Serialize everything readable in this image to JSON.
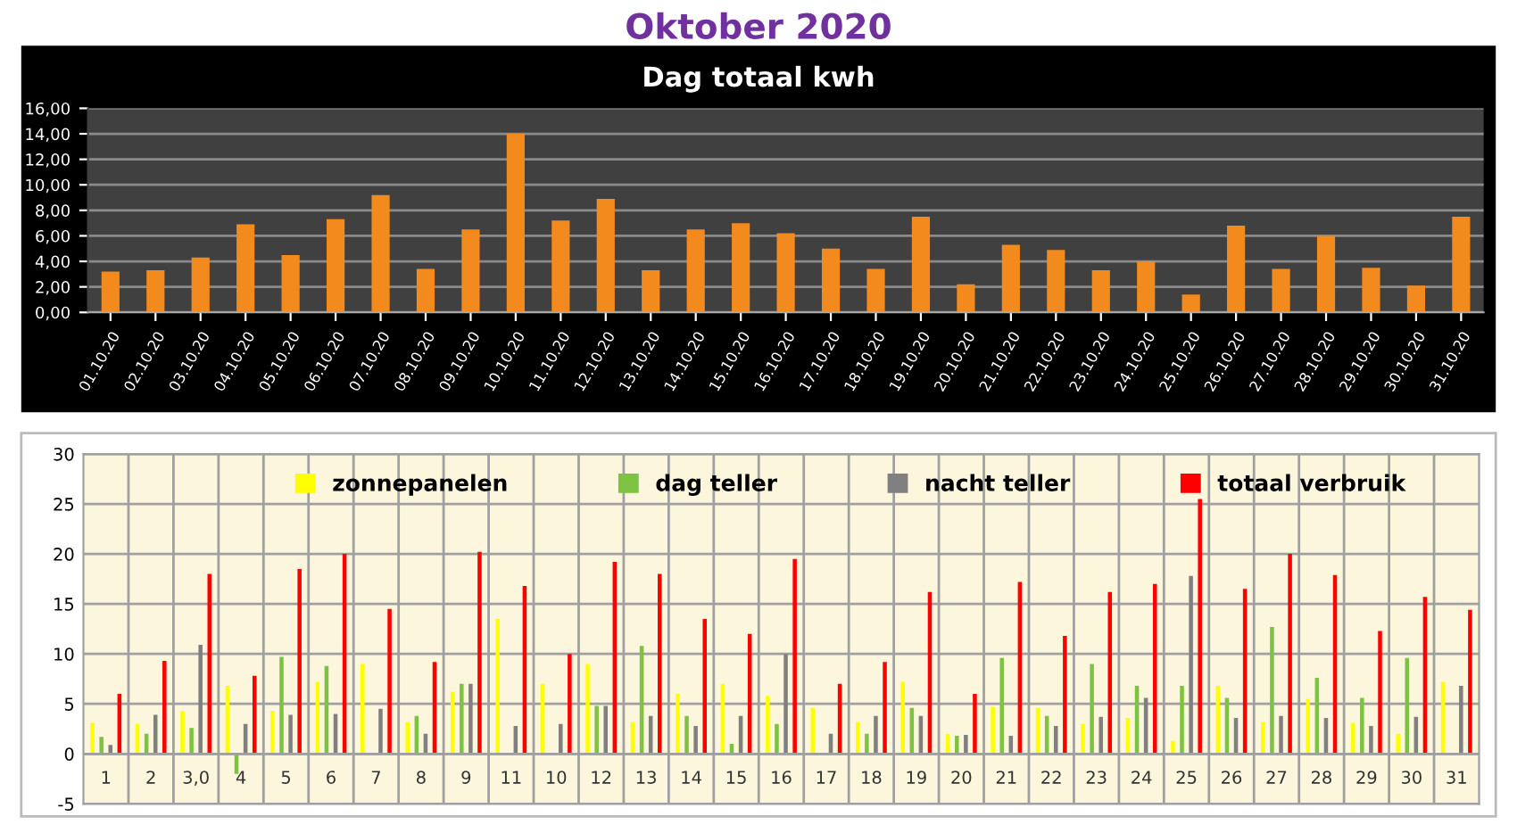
{
  "chart_data": [
    {
      "type": "bar",
      "title": "Oktober 2020",
      "subtitle": "Dag totaal kwh",
      "categories": [
        "01.10.20",
        "02.10.20",
        "03.10.20",
        "04.10.20",
        "05.10.20",
        "06.10.20",
        "07.10.20",
        "08.10.20",
        "09.10.20",
        "10.10.20",
        "11.10.20",
        "12.10.20",
        "13.10.20",
        "14.10.20",
        "15.10.20",
        "16.10.20",
        "17.10.20",
        "18.10.20",
        "19.10.20",
        "20.10.20",
        "21.10.20",
        "22.10.20",
        "23.10.20",
        "24.10.20",
        "25.10.20",
        "26.10.20",
        "27.10.20",
        "28.10.20",
        "29.10.20",
        "30.10.20",
        "31.10.20"
      ],
      "values": [
        3.2,
        3.3,
        4.3,
        6.9,
        4.5,
        7.3,
        9.2,
        3.4,
        6.5,
        14.0,
        7.2,
        8.9,
        3.3,
        6.5,
        7.0,
        6.2,
        5.0,
        3.4,
        7.5,
        2.2,
        5.3,
        4.9,
        3.3,
        4.0,
        1.4,
        6.8,
        3.4,
        6.0,
        3.5,
        2.1,
        7.5
      ],
      "color": "#f28a1e",
      "ylim": [
        0,
        16
      ],
      "yticks": [
        {
          "value": 0,
          "label": "0,00"
        },
        {
          "value": 2,
          "label": "2,00"
        },
        {
          "value": 4,
          "label": "4,00"
        },
        {
          "value": 6,
          "label": "6,00"
        },
        {
          "value": 8,
          "label": "8,00"
        },
        {
          "value": 10,
          "label": "10,00"
        },
        {
          "value": 12,
          "label": "12,00"
        },
        {
          "value": 14,
          "label": "14,00"
        },
        {
          "value": 16,
          "label": "16,00"
        }
      ],
      "grid": "y"
    },
    {
      "type": "bar",
      "categories": [
        "1",
        "2",
        "3,0",
        "4",
        "5",
        "6",
        "7",
        "8",
        "9",
        "11",
        "10",
        "12",
        "13",
        "14",
        "15",
        "16",
        "17",
        "18",
        "19",
        "20",
        "21",
        "22",
        "23",
        "24",
        "25",
        "26",
        "27",
        "28",
        "29",
        "30",
        "31"
      ],
      "series": [
        {
          "name": "zonnepanelen",
          "color": "#ffff00",
          "values": [
            3.1,
            3.0,
            4.3,
            6.8,
            4.3,
            7.2,
            9.0,
            3.2,
            6.2,
            13.5,
            7.0,
            9.0,
            3.2,
            6.0,
            7.0,
            5.8,
            4.6,
            3.2,
            7.2,
            2.0,
            4.7,
            4.6,
            3.0,
            3.6,
            1.3,
            6.8,
            3.2,
            5.5,
            3.1,
            2.0,
            7.2
          ]
        },
        {
          "name": "dag teller",
          "color": "#7dc242",
          "values": [
            1.7,
            2.0,
            2.6,
            -2.0,
            9.7,
            8.8,
            0,
            3.8,
            7.0,
            0,
            0,
            4.8,
            10.8,
            3.8,
            1.0,
            3.0,
            0,
            2.0,
            4.6,
            1.8,
            9.6,
            3.8,
            9.0,
            6.8,
            6.8,
            5.6,
            12.7,
            7.6,
            5.6,
            9.6,
            0
          ]
        },
        {
          "name": "nacht teller",
          "color": "#808080",
          "values": [
            0.9,
            3.9,
            10.9,
            3.0,
            3.9,
            4.0,
            4.5,
            2.0,
            7.0,
            2.8,
            3.0,
            4.8,
            3.8,
            2.8,
            3.8,
            10.0,
            2.0,
            3.8,
            3.8,
            1.9,
            1.8,
            2.8,
            3.7,
            5.6,
            17.8,
            3.6,
            3.8,
            3.6,
            2.8,
            3.7,
            6.8
          ]
        },
        {
          "name": "totaal verbruik",
          "color": "#ff0000",
          "values": [
            6.0,
            9.3,
            18.0,
            7.8,
            18.5,
            20.0,
            14.5,
            9.2,
            20.2,
            16.8,
            10.0,
            19.2,
            18.0,
            13.5,
            12.0,
            19.5,
            7.0,
            9.2,
            16.2,
            6.0,
            17.2,
            11.8,
            16.2,
            17.0,
            25.5,
            16.5,
            20.0,
            17.9,
            12.3,
            15.7,
            14.4
          ]
        }
      ],
      "ylim": [
        -5,
        30
      ],
      "yticks": [
        -5,
        0,
        5,
        10,
        15,
        20,
        25,
        30
      ],
      "grid": true,
      "legend": "top"
    }
  ]
}
